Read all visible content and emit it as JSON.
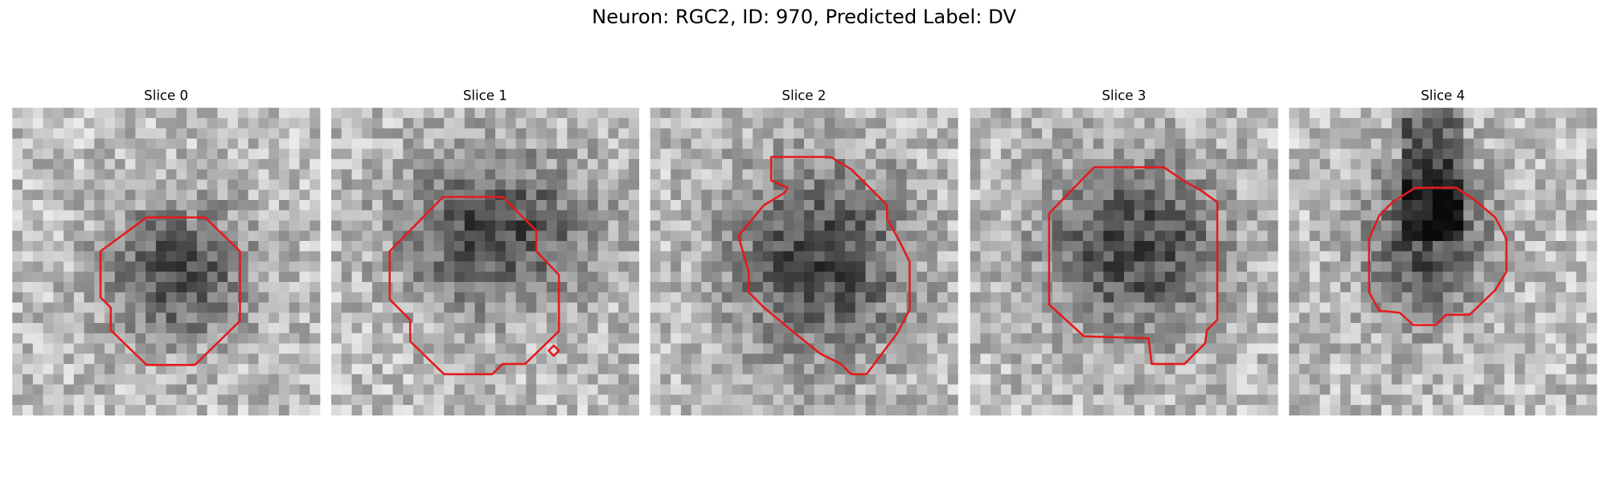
{
  "title": "Neuron: RGC2, ID: 970, Predicted Label: DV",
  "panels": [
    {
      "title": "Slice 0"
    },
    {
      "title": "Slice 1"
    },
    {
      "title": "Slice 2"
    },
    {
      "title": "Slice 3"
    },
    {
      "title": "Slice 4"
    }
  ]
}
